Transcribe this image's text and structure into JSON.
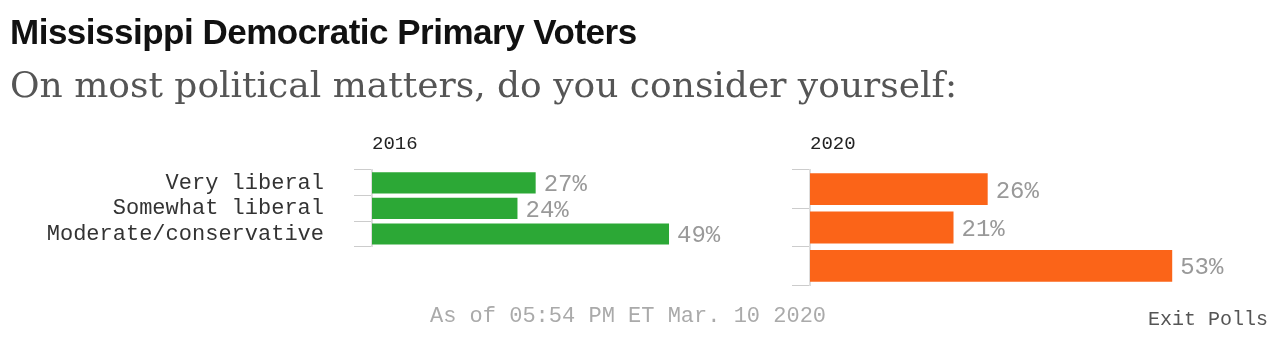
{
  "chart_data": [
    {
      "type": "other",
      "title": "Mississippi Democratic Primary Voters",
      "subtitle": "On most political matters, do you consider yourself:",
      "annotations": [
        "As of 05:54 PM ET Mar. 10 2020",
        "Exit Polls"
      ]
    },
    {
      "type": "bar",
      "orientation": "horizontal",
      "title": "2016",
      "categories": [
        "Very liberal",
        "Somewhat liberal",
        "Moderate/conservative"
      ],
      "values": [
        27,
        24,
        49
      ],
      "value_labels": [
        "27%",
        "24%",
        "49%"
      ],
      "color": "#2ca836",
      "tick_labels": "y",
      "grid": false,
      "legend": false
    },
    {
      "type": "bar",
      "orientation": "horizontal",
      "title": "2020",
      "categories": [
        null,
        null,
        null
      ],
      "values": [
        26,
        21,
        53
      ],
      "value_labels": [
        "26%",
        "21%",
        "53%"
      ],
      "color": "#fb6418",
      "tick_labels": false,
      "grid": false,
      "legend": false
    }
  ]
}
